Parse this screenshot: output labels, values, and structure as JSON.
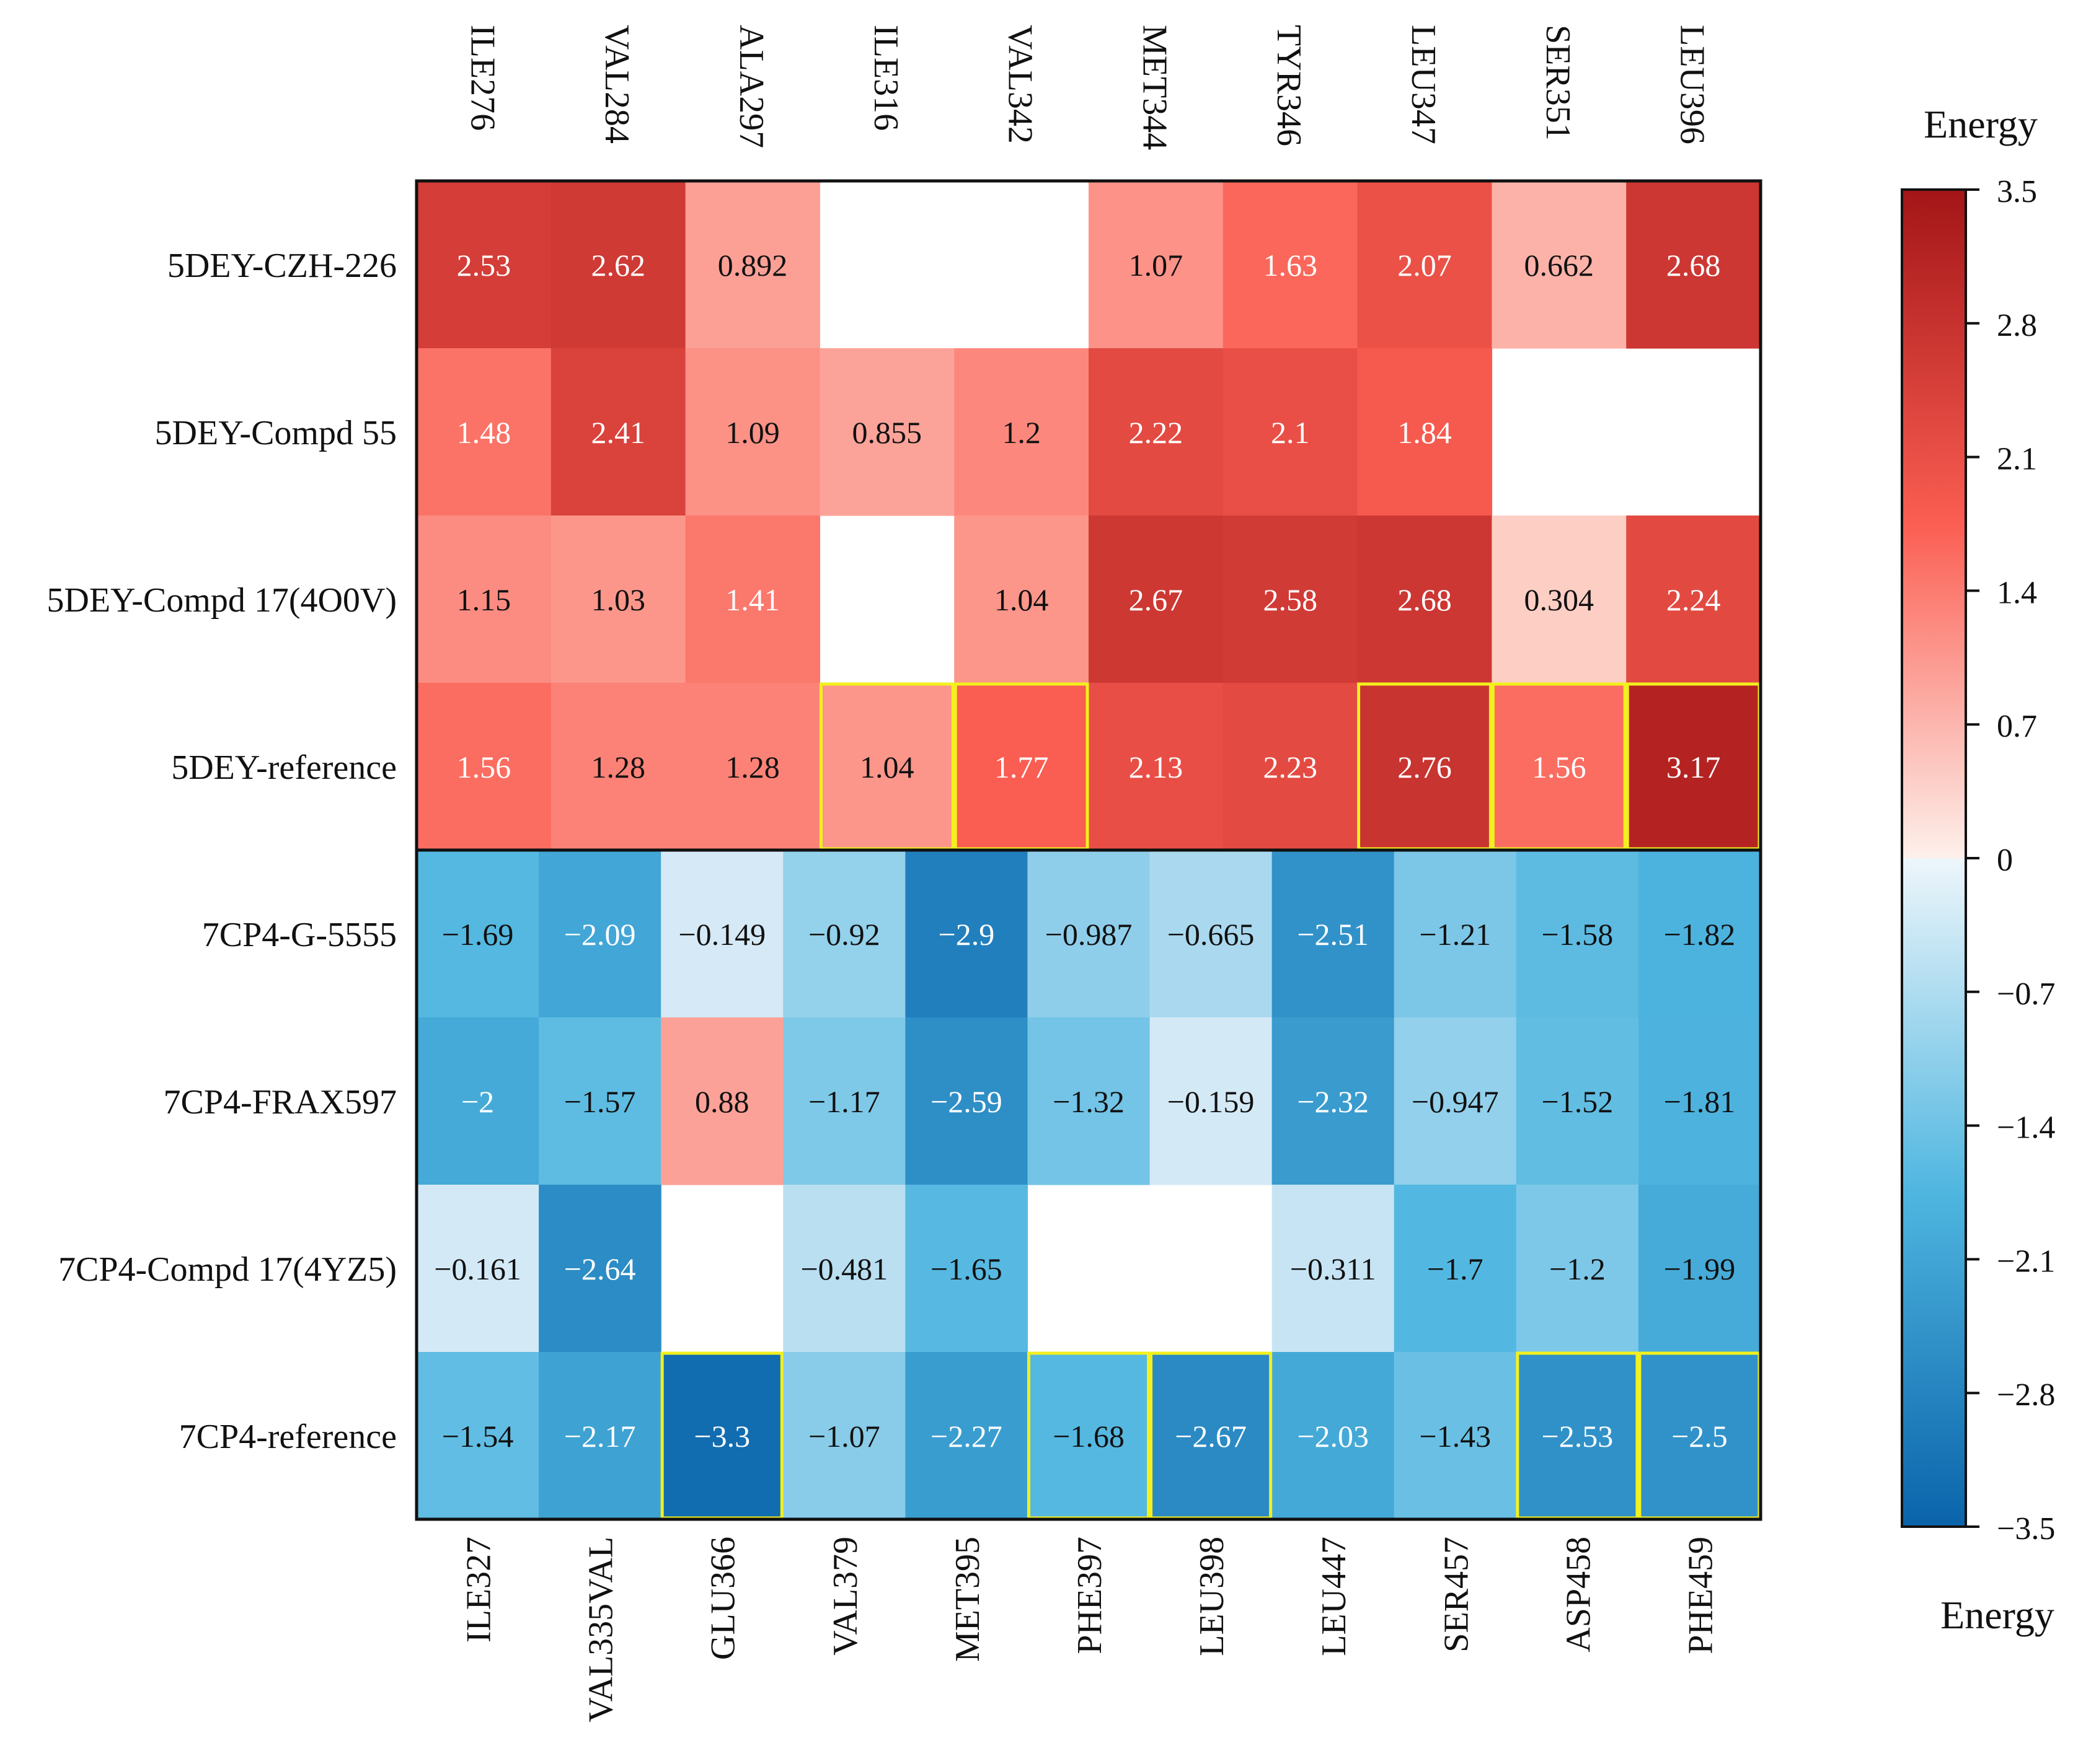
{
  "chart_data": {
    "type": "heatmap",
    "top": {
      "columns": [
        "ILE276",
        "VAL284",
        "ALA297",
        "ILE316",
        "VAL342",
        "MET344",
        "TYR346",
        "LEU347",
        "SER351",
        "LEU396"
      ],
      "rows": [
        "5DEY-CZH-226",
        "5DEY-Compd 55",
        "5DEY-Compd 17(4O0V)",
        "5DEY-reference"
      ],
      "values": [
        [
          2.53,
          2.62,
          0.892,
          null,
          null,
          1.07,
          1.63,
          2.07,
          0.662,
          2.68
        ],
        [
          1.48,
          2.41,
          1.09,
          0.855,
          1.2,
          2.22,
          2.1,
          1.84,
          null,
          null
        ],
        [
          1.15,
          1.03,
          1.41,
          null,
          1.04,
          2.67,
          2.58,
          2.68,
          0.304,
          2.24
        ],
        [
          1.56,
          1.28,
          1.28,
          1.04,
          1.77,
          2.13,
          2.23,
          2.76,
          1.56,
          3.17
        ]
      ],
      "highlighted": [
        [
          3,
          3
        ],
        [
          3,
          4
        ],
        [
          3,
          7
        ],
        [
          3,
          8
        ],
        [
          3,
          9
        ]
      ]
    },
    "bottom": {
      "columns": [
        "ILE327",
        "VAL335VAL",
        "GLU366",
        "VAL379",
        "MET395",
        "PHE397",
        "LEU398",
        "LEU447",
        "SER457",
        "ASP458",
        "PHE459"
      ],
      "rows": [
        "7CP4-G-5555",
        "7CP4-FRAX597",
        "7CP4-Compd 17(4YZ5)",
        "7CP4-reference"
      ],
      "values": [
        [
          -1.69,
          -2.09,
          -0.149,
          -0.92,
          -2.9,
          -0.987,
          -0.665,
          -2.51,
          -1.21,
          -1.58,
          -1.82
        ],
        [
          -2,
          -1.57,
          0.88,
          -1.17,
          -2.59,
          -1.32,
          -0.159,
          -2.32,
          -0.947,
          -1.52,
          -1.81
        ],
        [
          -0.161,
          -2.64,
          null,
          -0.481,
          -1.65,
          null,
          null,
          -0.311,
          -1.7,
          -1.2,
          -1.99
        ],
        [
          -1.54,
          -2.17,
          -3.3,
          -1.07,
          -2.27,
          -1.68,
          -2.67,
          -2.03,
          -1.43,
          -2.53,
          -2.5
        ]
      ],
      "labels": [
        [
          "−1.69",
          "−2.09",
          "−0.149",
          "−0.92",
          "−2.9",
          "−0.987",
          "−0.665",
          "−2.51",
          "−1.21",
          "−1.58",
          "−1.82"
        ],
        [
          "−2",
          "−1.57",
          "0.88",
          "−1.17",
          "−2.59",
          "−1.32",
          "−0.159",
          "−2.32",
          "−0.947",
          "−1.52",
          "−1.81"
        ],
        [
          "−0.161",
          "−2.64",
          "",
          "−0.481",
          "−1.65",
          "",
          "",
          "−0.311",
          "−1.7",
          "−1.2",
          "−1.99"
        ],
        [
          "−1.54",
          "−2.17",
          "−3.3",
          "−1.07",
          "−2.27",
          "−1.68",
          "−2.67",
          "−2.03",
          "−1.43",
          "−2.53",
          "−2.5"
        ]
      ],
      "highlighted": [
        [
          3,
          2
        ],
        [
          3,
          5
        ],
        [
          3,
          6
        ],
        [
          3,
          9
        ],
        [
          3,
          10
        ]
      ]
    },
    "colorbar": {
      "title_top": "Energy",
      "title_bottom": "Energy",
      "range": [
        -3.5,
        3.5
      ],
      "ticks": [
        "3.5",
        "2.8",
        "2.1",
        "1.4",
        "0.7",
        "0",
        "−0.7",
        "−1.4",
        "−2.1",
        "−2.8",
        "−3.5"
      ]
    },
    "colors": {
      "positive_light": "#fde5dc",
      "positive_mid": "#fb5e52",
      "positive_dark": "#a31517",
      "negative_light": "#e1eef8",
      "negative_mid": "#4fb6e0",
      "negative_dark": "#0a63aa",
      "highlight": "#f2f01e",
      "frame": "#111111"
    }
  }
}
